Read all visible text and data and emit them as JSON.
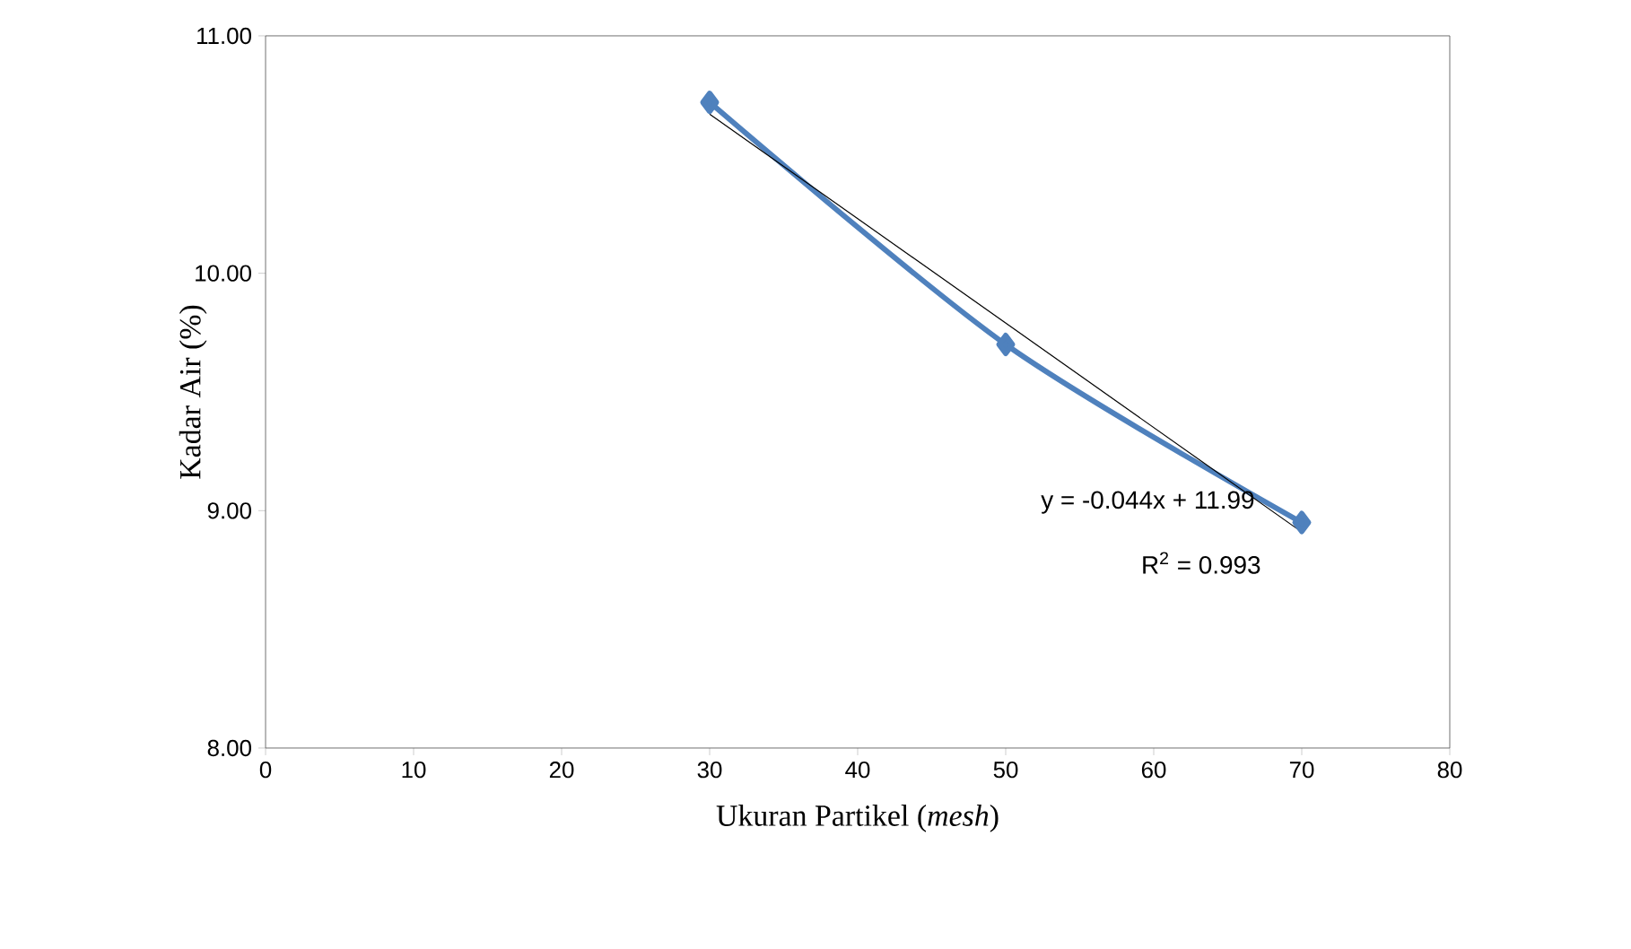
{
  "chart_data": {
    "type": "line",
    "xlabel": "Ukuran Partikel (*mesh*)",
    "ylabel": "Kadar Air (%)",
    "series": [
      {
        "color": "#4f81bd",
        "x": [
          30,
          50,
          70
        ],
        "values": [
          10.72,
          9.7,
          8.95
        ]
      },
      {
        "color": "#000000",
        "x": [
          30,
          70
        ],
        "values": [
          10.67,
          8.91
        ],
        "marker": "none"
      }
    ],
    "xlim": [
      0,
      80
    ],
    "xticks": [
      0,
      10,
      20,
      30,
      40,
      50,
      60,
      70,
      80
    ],
    "ylim": [
      8,
      11
    ],
    "yticks": [
      {
        "value": 8,
        "label": "8.00"
      },
      {
        "value": 9,
        "label": "9.00"
      },
      {
        "value": 10,
        "label": "10.00"
      },
      {
        "value": 11,
        "label": "11.00"
      }
    ],
    "annotations": [
      "y = -0.044x + 11.99",
      "R$^{2}$ = 0.993"
    ],
    "marker": "diamond"
  }
}
